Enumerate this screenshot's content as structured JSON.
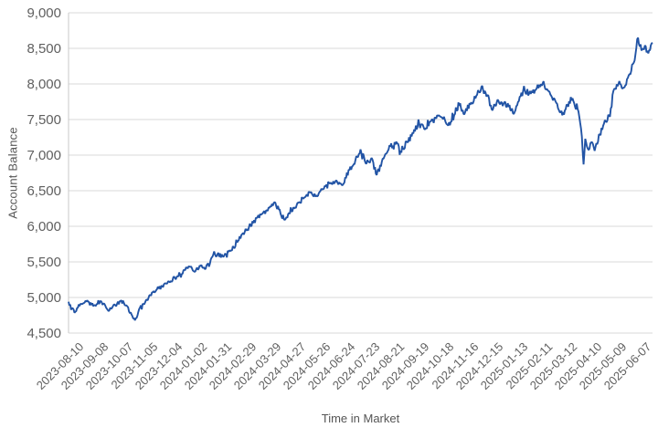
{
  "chart_data": {
    "type": "line",
    "title": "",
    "xlabel": "Time in Market",
    "ylabel": "Account Balance",
    "legend": null,
    "grid": "horizontal",
    "background": "#ffffff",
    "line_color": "#2254a5",
    "grid_color": "#d9d9d9",
    "axis_line_color": "#c9c9c9",
    "tick_text_color": "#5f5f5f",
    "title_text_color": "#555555",
    "ylim": [
      4500,
      9000
    ],
    "yticks": [
      {
        "value": 4500,
        "label": "4,500"
      },
      {
        "value": 5000,
        "label": "5,000"
      },
      {
        "value": 5500,
        "label": "5,500"
      },
      {
        "value": 6000,
        "label": "6,000"
      },
      {
        "value": 6500,
        "label": "6,500"
      },
      {
        "value": 7000,
        "label": "7,000"
      },
      {
        "value": 7500,
        "label": "7,500"
      },
      {
        "value": 8000,
        "label": "8,000"
      },
      {
        "value": 8500,
        "label": "8,500"
      },
      {
        "value": 9000,
        "label": "9,000"
      }
    ],
    "xticks": [
      "2023-08-10",
      "2023-09-08",
      "2023-10-07",
      "2023-11-05",
      "2023-12-04",
      "2024-01-02",
      "2024-01-31",
      "2024-02-29",
      "2024-03-29",
      "2024-04-27",
      "2024-05-26",
      "2024-06-24",
      "2024-07-23",
      "2024-08-21",
      "2024-09-19",
      "2024-10-18",
      "2024-11-16",
      "2024-12-15",
      "2025-01-13",
      "2025-02-11",
      "2025-03-12",
      "2025-04-10",
      "2025-05-09",
      "2025-06-07"
    ],
    "xtick_interval_days": 29,
    "start_date": "2023-08-10",
    "end_day": 686,
    "series_name": "Account Balance",
    "anchors_day_value": [
      [
        0,
        4940
      ],
      [
        4,
        4850
      ],
      [
        8,
        4800
      ],
      [
        14,
        4910
      ],
      [
        22,
        4960
      ],
      [
        30,
        4890
      ],
      [
        38,
        4950
      ],
      [
        48,
        4820
      ],
      [
        55,
        4890
      ],
      [
        62,
        4960
      ],
      [
        68,
        4890
      ],
      [
        74,
        4760
      ],
      [
        78,
        4680
      ],
      [
        84,
        4860
      ],
      [
        92,
        4970
      ],
      [
        100,
        5090
      ],
      [
        110,
        5160
      ],
      [
        120,
        5230
      ],
      [
        128,
        5300
      ],
      [
        136,
        5390
      ],
      [
        143,
        5430
      ],
      [
        148,
        5360
      ],
      [
        155,
        5440
      ],
      [
        160,
        5400
      ],
      [
        168,
        5560
      ],
      [
        175,
        5610
      ],
      [
        182,
        5570
      ],
      [
        188,
        5640
      ],
      [
        196,
        5720
      ],
      [
        204,
        5890
      ],
      [
        212,
        5990
      ],
      [
        220,
        6120
      ],
      [
        228,
        6180
      ],
      [
        236,
        6260
      ],
      [
        243,
        6330
      ],
      [
        249,
        6180
      ],
      [
        254,
        6090
      ],
      [
        262,
        6210
      ],
      [
        270,
        6330
      ],
      [
        278,
        6410
      ],
      [
        285,
        6480
      ],
      [
        292,
        6420
      ],
      [
        300,
        6530
      ],
      [
        307,
        6600
      ],
      [
        315,
        6640
      ],
      [
        321,
        6580
      ],
      [
        330,
        6790
      ],
      [
        337,
        6930
      ],
      [
        343,
        7080
      ],
      [
        350,
        6880
      ],
      [
        356,
        6960
      ],
      [
        362,
        6720
      ],
      [
        370,
        6950
      ],
      [
        378,
        7120
      ],
      [
        385,
        7190
      ],
      [
        390,
        7060
      ],
      [
        398,
        7180
      ],
      [
        406,
        7360
      ],
      [
        414,
        7430
      ],
      [
        420,
        7380
      ],
      [
        428,
        7490
      ],
      [
        435,
        7560
      ],
      [
        442,
        7500
      ],
      [
        448,
        7420
      ],
      [
        453,
        7560
      ],
      [
        458,
        7740
      ],
      [
        464,
        7580
      ],
      [
        472,
        7710
      ],
      [
        480,
        7850
      ],
      [
        485,
        7960
      ],
      [
        492,
        7840
      ],
      [
        498,
        7630
      ],
      [
        504,
        7780
      ],
      [
        510,
        7690
      ],
      [
        516,
        7730
      ],
      [
        522,
        7590
      ],
      [
        530,
        7820
      ],
      [
        536,
        7910
      ],
      [
        543,
        7860
      ],
      [
        550,
        7940
      ],
      [
        557,
        8010
      ],
      [
        562,
        7930
      ],
      [
        568,
        7810
      ],
      [
        574,
        7720
      ],
      [
        580,
        7560
      ],
      [
        586,
        7710
      ],
      [
        592,
        7800
      ],
      [
        598,
        7650
      ],
      [
        603,
        7260
      ],
      [
        605,
        6870
      ],
      [
        607,
        7230
      ],
      [
        610,
        7090
      ],
      [
        614,
        7180
      ],
      [
        618,
        7060
      ],
      [
        624,
        7290
      ],
      [
        630,
        7490
      ],
      [
        636,
        7540
      ],
      [
        640,
        7900
      ],
      [
        646,
        8000
      ],
      [
        652,
        7950
      ],
      [
        658,
        8120
      ],
      [
        664,
        8300
      ],
      [
        669,
        8650
      ],
      [
        673,
        8470
      ],
      [
        677,
        8540
      ],
      [
        681,
        8430
      ],
      [
        686,
        8580
      ]
    ],
    "noise": {
      "seed": 12,
      "amplitude_pct": 0.006,
      "spike_chance": 0.08,
      "spike_mult": 2.2
    }
  }
}
